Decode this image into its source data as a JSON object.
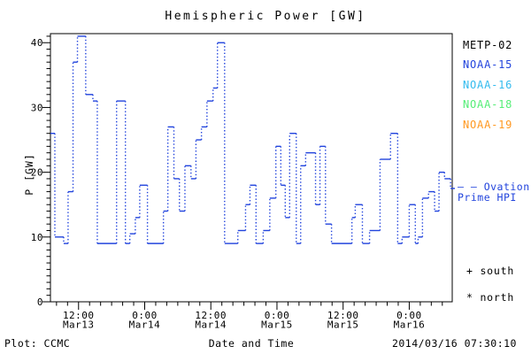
{
  "chart_data": {
    "type": "line",
    "title": "Hemispheric Power [GW]",
    "xlabel": "Date and Time",
    "ylabel": "P [GW]",
    "grid": false,
    "legend_position": "right margin",
    "ylim": [
      0,
      41.4
    ],
    "y_ticks": [
      0,
      10,
      20,
      30,
      40
    ],
    "y_minor_step": 1,
    "xlim_hours": [
      6.9,
      79.8
    ],
    "x_minor_step_hours": 2,
    "x_ticks": [
      {
        "hours": 12,
        "time": "12:00",
        "date": "Mar13"
      },
      {
        "hours": 24,
        "time": "0:00",
        "date": "Mar14"
      },
      {
        "hours": 36,
        "time": "12:00",
        "date": "Mar14"
      },
      {
        "hours": 48,
        "time": "0:00",
        "date": "Mar15"
      },
      {
        "hours": 60,
        "time": "12:00",
        "date": "Mar15"
      },
      {
        "hours": 72,
        "time": "0:00",
        "date": "Mar16"
      }
    ],
    "series": [
      {
        "name": "Ovation Prime HPI",
        "units": "GW",
        "color": "#2244dd",
        "line_style": "step: solid horizontal levels, dotted vertical transitions",
        "points_hours_gw": [
          [
            6.9,
            26
          ],
          [
            7.7,
            10
          ],
          [
            9.3,
            9
          ],
          [
            10.1,
            17
          ],
          [
            11.0,
            37
          ],
          [
            11.8,
            41
          ],
          [
            13.3,
            32
          ],
          [
            14.6,
            31
          ],
          [
            15.4,
            9
          ],
          [
            18.9,
            31
          ],
          [
            20.5,
            9
          ],
          [
            21.3,
            10.5
          ],
          [
            22.3,
            13
          ],
          [
            23.1,
            18
          ],
          [
            24.5,
            9
          ],
          [
            27.4,
            14
          ],
          [
            28.2,
            27
          ],
          [
            29.3,
            19
          ],
          [
            30.3,
            14
          ],
          [
            31.3,
            21
          ],
          [
            32.4,
            19
          ],
          [
            33.3,
            25
          ],
          [
            34.3,
            27
          ],
          [
            35.3,
            31
          ],
          [
            36.4,
            33
          ],
          [
            37.2,
            40
          ],
          [
            38.5,
            9
          ],
          [
            40.9,
            11
          ],
          [
            42.3,
            15
          ],
          [
            43.1,
            18
          ],
          [
            44.2,
            9
          ],
          [
            45.5,
            11
          ],
          [
            46.7,
            16
          ],
          [
            47.8,
            24
          ],
          [
            48.7,
            18
          ],
          [
            49.5,
            13
          ],
          [
            50.3,
            26
          ],
          [
            51.5,
            9
          ],
          [
            52.3,
            21
          ],
          [
            53.2,
            23
          ],
          [
            55.0,
            15
          ],
          [
            55.8,
            24
          ],
          [
            56.8,
            12
          ],
          [
            57.9,
            9
          ],
          [
            61.6,
            13
          ],
          [
            62.2,
            15
          ],
          [
            63.5,
            9
          ],
          [
            64.8,
            11
          ],
          [
            66.7,
            22
          ],
          [
            68.6,
            26
          ],
          [
            69.9,
            9
          ],
          [
            70.7,
            10
          ],
          [
            72.0,
            15
          ],
          [
            73.1,
            9
          ],
          [
            73.6,
            10
          ],
          [
            74.4,
            16
          ],
          [
            75.5,
            17
          ],
          [
            76.6,
            14
          ],
          [
            77.4,
            20
          ],
          [
            78.4,
            19
          ],
          [
            79.5,
            17.5
          ]
        ]
      }
    ]
  },
  "legend": {
    "satellites": [
      {
        "label": "METP-02",
        "color": "#000000"
      },
      {
        "label": "NOAA-15",
        "color": "#2244dd"
      },
      {
        "label": "NOAA-16",
        "color": "#33bbee"
      },
      {
        "label": "NOAA-18",
        "color": "#55ee77"
      },
      {
        "label": "NOAA-19",
        "color": "#ff9922"
      }
    ],
    "ovation_color": "#2244dd",
    "ovation_line1": "– – Ovation",
    "ovation_line2": "Prime HPI",
    "south": "+ south",
    "north": "* north"
  },
  "footer": {
    "plot_credit": "Plot: CCMC",
    "timestamp": "2014/03/16 07:30:10"
  }
}
